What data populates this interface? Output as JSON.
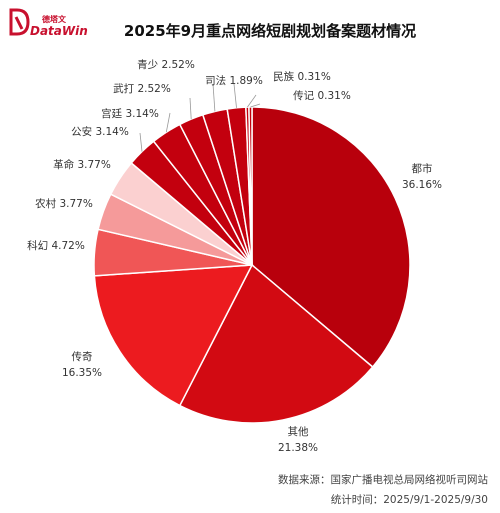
{
  "brand": {
    "name_cn": "德塔文",
    "name_en": "DataWin"
  },
  "footer": {
    "source": "数据来源：国家广播电视总局网络视听司网站",
    "time": "统计时间：2025/9/1-2025/9/30"
  },
  "chart_data": {
    "type": "pie",
    "title": "2025年9月重点网络短剧规划备案题材情况",
    "slices": [
      {
        "name": "都市",
        "value": 36.16,
        "label": "36.16%",
        "color": "#b8000c"
      },
      {
        "name": "其他",
        "value": 21.38,
        "label": "21.38%",
        "color": "#d20a12"
      },
      {
        "name": "传奇",
        "value": 16.35,
        "label": "16.35%",
        "color": "#ec1b1f"
      },
      {
        "name": "科幻",
        "value": 4.72,
        "label": "4.72%",
        "color": "#f05656"
      },
      {
        "name": "农村",
        "value": 3.77,
        "label": "3.77%",
        "color": "#f59a9a"
      },
      {
        "name": "革命",
        "value": 3.77,
        "label": "3.77%",
        "color": "#fbd0d0"
      },
      {
        "name": "公安",
        "value": 3.14,
        "label": "3.14%",
        "color": "#c3000e"
      },
      {
        "name": "宫廷",
        "value": 3.14,
        "label": "3.14%",
        "color": "#c3000e"
      },
      {
        "name": "武打",
        "value": 2.52,
        "label": "2.52%",
        "color": "#c3000e"
      },
      {
        "name": "青少",
        "value": 2.52,
        "label": "2.52%",
        "color": "#c3000e"
      },
      {
        "name": "司法",
        "value": 1.89,
        "label": "1.89%",
        "color": "#c3000e"
      },
      {
        "name": "民族",
        "value": 0.31,
        "label": "0.31%",
        "color": "#c3000e"
      },
      {
        "name": "传记",
        "value": 0.31,
        "label": "0.31%",
        "color": "#c3000e"
      }
    ],
    "legend": "none"
  }
}
